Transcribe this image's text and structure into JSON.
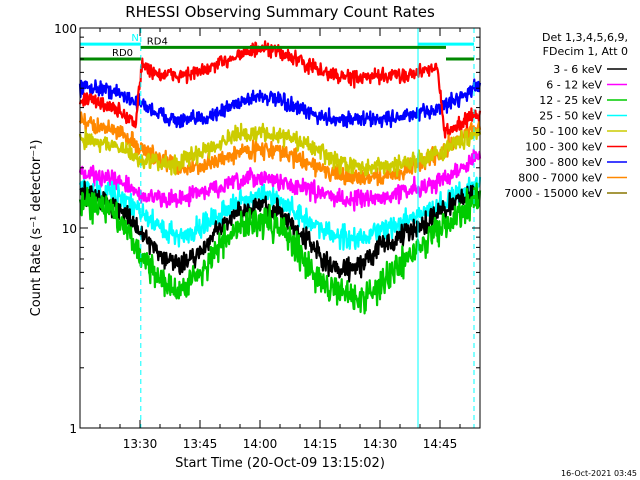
{
  "chart_data": {
    "type": "line",
    "title": "RHESSI Observing Summary Count Rates",
    "xlabel": "Start Time (20-Oct-09 13:15:02)",
    "ylabel": "Count Rate (s⁻¹ detector⁻¹)",
    "yscale": "log",
    "ylim": [
      1,
      100
    ],
    "xlim_minutes_after_1315": [
      0,
      100
    ],
    "y_ticks": [
      "1",
      "10",
      "100"
    ],
    "x_ticks": [
      {
        "label": "13:30",
        "t": 15
      },
      {
        "label": "13:45",
        "t": 30
      },
      {
        "label": "14:00",
        "t": 45
      },
      {
        "label": "14:15",
        "t": 60
      },
      {
        "label": "14:30",
        "t": 75
      },
      {
        "label": "14:45",
        "t": 90
      }
    ],
    "legend": {
      "placement": "right",
      "header": [
        "Det 1,3,4,5,6,9,",
        "FDecim 1, Att 0"
      ],
      "entries": [
        {
          "label": "3 - 6 keV",
          "color": "#000000"
        },
        {
          "label": "6 - 12 keV",
          "color": "#ff00ff"
        },
        {
          "label": "12 - 25 keV",
          "color": "#00cc00"
        },
        {
          "label": "25 - 50 keV",
          "color": "#00ffff"
        },
        {
          "label": "50 - 100 keV",
          "color": "#cccc00"
        },
        {
          "label": "100 - 300 keV",
          "color": "#ff0000"
        },
        {
          "label": "300 - 800 keV",
          "color": "#0000ff"
        },
        {
          "label": "800 - 7000 keV",
          "color": "#ff8800"
        },
        {
          "label": "7000 - 15000 keV",
          "color": "#887700"
        }
      ]
    },
    "series": [
      {
        "name": "3 - 6 keV",
        "color": "#000000",
        "noise": 0.05,
        "points": [
          [
            0,
            15
          ],
          [
            5,
            14
          ],
          [
            10,
            12.5
          ],
          [
            15,
            9.5
          ],
          [
            20,
            7.5
          ],
          [
            25,
            6.5
          ],
          [
            30,
            7.5
          ],
          [
            35,
            10
          ],
          [
            40,
            12
          ],
          [
            45,
            13
          ],
          [
            50,
            12
          ],
          [
            55,
            9.5
          ],
          [
            60,
            7
          ],
          [
            65,
            6
          ],
          [
            70,
            6.5
          ],
          [
            75,
            8
          ],
          [
            80,
            9
          ],
          [
            85,
            10
          ],
          [
            90,
            12
          ],
          [
            95,
            14
          ],
          [
            100,
            15
          ]
        ]
      },
      {
        "name": "6 - 12 keV",
        "color": "#ff00ff",
        "noise": 0.04,
        "points": [
          [
            0,
            19
          ],
          [
            5,
            18
          ],
          [
            10,
            17
          ],
          [
            15,
            14.5
          ],
          [
            20,
            14
          ],
          [
            25,
            14
          ],
          [
            30,
            15
          ],
          [
            35,
            16
          ],
          [
            40,
            17
          ],
          [
            45,
            18
          ],
          [
            50,
            17
          ],
          [
            55,
            16
          ],
          [
            60,
            15
          ],
          [
            65,
            14
          ],
          [
            70,
            14
          ],
          [
            75,
            14
          ],
          [
            80,
            15
          ],
          [
            85,
            16
          ],
          [
            90,
            17
          ],
          [
            95,
            20
          ],
          [
            100,
            23
          ]
        ]
      },
      {
        "name": "12 - 25 keV",
        "color": "#00cc00",
        "noise": 0.07,
        "points": [
          [
            0,
            14
          ],
          [
            5,
            13
          ],
          [
            10,
            11
          ],
          [
            15,
            7.5
          ],
          [
            20,
            5.5
          ],
          [
            25,
            4.8
          ],
          [
            30,
            6
          ],
          [
            35,
            8
          ],
          [
            40,
            10
          ],
          [
            45,
            11
          ],
          [
            50,
            10
          ],
          [
            55,
            7.5
          ],
          [
            60,
            5.5
          ],
          [
            65,
            4.8
          ],
          [
            70,
            4.5
          ],
          [
            75,
            5
          ],
          [
            80,
            6.5
          ],
          [
            85,
            8
          ],
          [
            90,
            10
          ],
          [
            95,
            12
          ],
          [
            100,
            14
          ]
        ]
      },
      {
        "name": "25 - 50 keV",
        "color": "#00ffff",
        "noise": 0.05,
        "points": [
          [
            0,
            16
          ],
          [
            5,
            15.5
          ],
          [
            10,
            14.5
          ],
          [
            15,
            12
          ],
          [
            20,
            10
          ],
          [
            25,
            9
          ],
          [
            30,
            10
          ],
          [
            35,
            12
          ],
          [
            40,
            13.5
          ],
          [
            45,
            14.5
          ],
          [
            50,
            13.5
          ],
          [
            55,
            11.5
          ],
          [
            60,
            10
          ],
          [
            65,
            9
          ],
          [
            70,
            9
          ],
          [
            75,
            9.5
          ],
          [
            80,
            10.5
          ],
          [
            85,
            11.5
          ],
          [
            90,
            13
          ],
          [
            95,
            15
          ],
          [
            100,
            17
          ]
        ]
      },
      {
        "name": "50 - 100 keV",
        "color": "#cccc00",
        "noise": 0.04,
        "points": [
          [
            0,
            28
          ],
          [
            5,
            27
          ],
          [
            10,
            25
          ],
          [
            15,
            22
          ],
          [
            20,
            21
          ],
          [
            25,
            21
          ],
          [
            30,
            24
          ],
          [
            35,
            27
          ],
          [
            40,
            29
          ],
          [
            45,
            30
          ],
          [
            50,
            29
          ],
          [
            55,
            27
          ],
          [
            60,
            24
          ],
          [
            65,
            21
          ],
          [
            70,
            20
          ],
          [
            75,
            20
          ],
          [
            80,
            21
          ],
          [
            85,
            22
          ],
          [
            90,
            24
          ],
          [
            95,
            27
          ],
          [
            100,
            31
          ]
        ]
      },
      {
        "name": "100 - 300 keV",
        "color": "#ff0000",
        "noise": 0.035,
        "points": [
          [
            0,
            44
          ],
          [
            4,
            43
          ],
          [
            8,
            40
          ],
          [
            11,
            37
          ],
          [
            14,
            33
          ],
          [
            15.5,
            65
          ],
          [
            20,
            58
          ],
          [
            25,
            58
          ],
          [
            30,
            60
          ],
          [
            35,
            66
          ],
          [
            40,
            75
          ],
          [
            45,
            78
          ],
          [
            50,
            76
          ],
          [
            55,
            68
          ],
          [
            60,
            61
          ],
          [
            65,
            57
          ],
          [
            70,
            56
          ],
          [
            75,
            57
          ],
          [
            80,
            58
          ],
          [
            85,
            60
          ],
          [
            89,
            66
          ],
          [
            91,
            30
          ],
          [
            95,
            33
          ],
          [
            100,
            38
          ]
        ]
      },
      {
        "name": "300 - 800 keV",
        "color": "#0000ff",
        "noise": 0.035,
        "points": [
          [
            0,
            51
          ],
          [
            5,
            50
          ],
          [
            10,
            47
          ],
          [
            15,
            42
          ],
          [
            20,
            37
          ],
          [
            25,
            34
          ],
          [
            30,
            35
          ],
          [
            35,
            38
          ],
          [
            40,
            43
          ],
          [
            45,
            46
          ],
          [
            50,
            43
          ],
          [
            55,
            39
          ],
          [
            60,
            36
          ],
          [
            65,
            35
          ],
          [
            70,
            35
          ],
          [
            75,
            35
          ],
          [
            80,
            36
          ],
          [
            85,
            37
          ],
          [
            90,
            40
          ],
          [
            95,
            45
          ],
          [
            100,
            52
          ]
        ]
      },
      {
        "name": "800 - 7000 keV",
        "color": "#ff8800",
        "noise": 0.04,
        "points": [
          [
            0,
            34
          ],
          [
            5,
            32
          ],
          [
            10,
            30
          ],
          [
            15,
            25
          ],
          [
            20,
            22
          ],
          [
            25,
            20
          ],
          [
            30,
            20
          ],
          [
            35,
            22
          ],
          [
            40,
            24
          ],
          [
            45,
            25
          ],
          [
            50,
            24
          ],
          [
            55,
            22
          ],
          [
            60,
            20
          ],
          [
            65,
            18
          ],
          [
            70,
            18
          ],
          [
            75,
            18
          ],
          [
            80,
            19
          ],
          [
            85,
            21
          ],
          [
            90,
            24
          ],
          [
            95,
            28
          ],
          [
            100,
            33
          ]
        ]
      },
      {
        "name": "7000 - 15000 keV",
        "color": "#887700",
        "noise": 0,
        "points": [
          [
            0,
            1
          ],
          [
            100,
            1
          ]
        ]
      }
    ],
    "annotations": [
      {
        "text": "N",
        "color": "#00ffff",
        "y": 83,
        "t_start": 0,
        "t_end": 15.2
      },
      {
        "text": "",
        "color": "#00ffff",
        "y": 83,
        "t_start": 84.5,
        "t_end": 98.5
      },
      {
        "text": "RD0",
        "color": "#008800",
        "y": 70,
        "t_start": 0,
        "t_end": 15.2
      },
      {
        "text": "RD4",
        "color": "#008800",
        "y": 80,
        "t_start": 15.2,
        "t_end": 91.5
      },
      {
        "text": "",
        "color": "#008800",
        "y": 70,
        "t_start": 91.5,
        "t_end": 98.5
      }
    ],
    "vertical_markers": [
      {
        "t": 0,
        "style": "solid",
        "color": "#00ffff"
      },
      {
        "t": 15.2,
        "style": "dashed",
        "color": "#00ffff"
      },
      {
        "t": 84.5,
        "style": "solid",
        "color": "#00ffff"
      },
      {
        "t": 98.5,
        "style": "dashed",
        "color": "#00ffff"
      }
    ]
  },
  "footer": {
    "timestamp": "16-Oct-2021 03:45"
  }
}
